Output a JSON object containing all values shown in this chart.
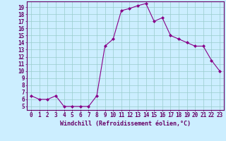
{
  "x": [
    0,
    1,
    2,
    3,
    4,
    5,
    6,
    7,
    8,
    9,
    10,
    11,
    12,
    13,
    14,
    15,
    16,
    17,
    18,
    19,
    20,
    21,
    22,
    23
  ],
  "y": [
    6.5,
    6.0,
    6.0,
    6.5,
    5.0,
    5.0,
    5.0,
    5.0,
    6.5,
    13.5,
    14.5,
    18.5,
    18.8,
    19.2,
    19.5,
    17.0,
    17.5,
    15.0,
    14.5,
    14.0,
    13.5,
    13.5,
    11.5,
    10.0
  ],
  "line_color": "#880088",
  "marker": "D",
  "markersize": 2.0,
  "linewidth": 0.8,
  "bg_color": "#cceeff",
  "grid_color": "#99cccc",
  "xlabel": "Windchill (Refroidissement éolien,°C)",
  "xlabel_fontsize": 6.0,
  "ylabel_ticks": [
    5,
    6,
    7,
    8,
    9,
    10,
    11,
    12,
    13,
    14,
    15,
    16,
    17,
    18,
    19
  ],
  "xlim": [
    -0.5,
    23.5
  ],
  "ylim": [
    4.5,
    19.8
  ],
  "tick_fontsize": 5.5,
  "spine_color": "#660066",
  "label_color": "#660066"
}
